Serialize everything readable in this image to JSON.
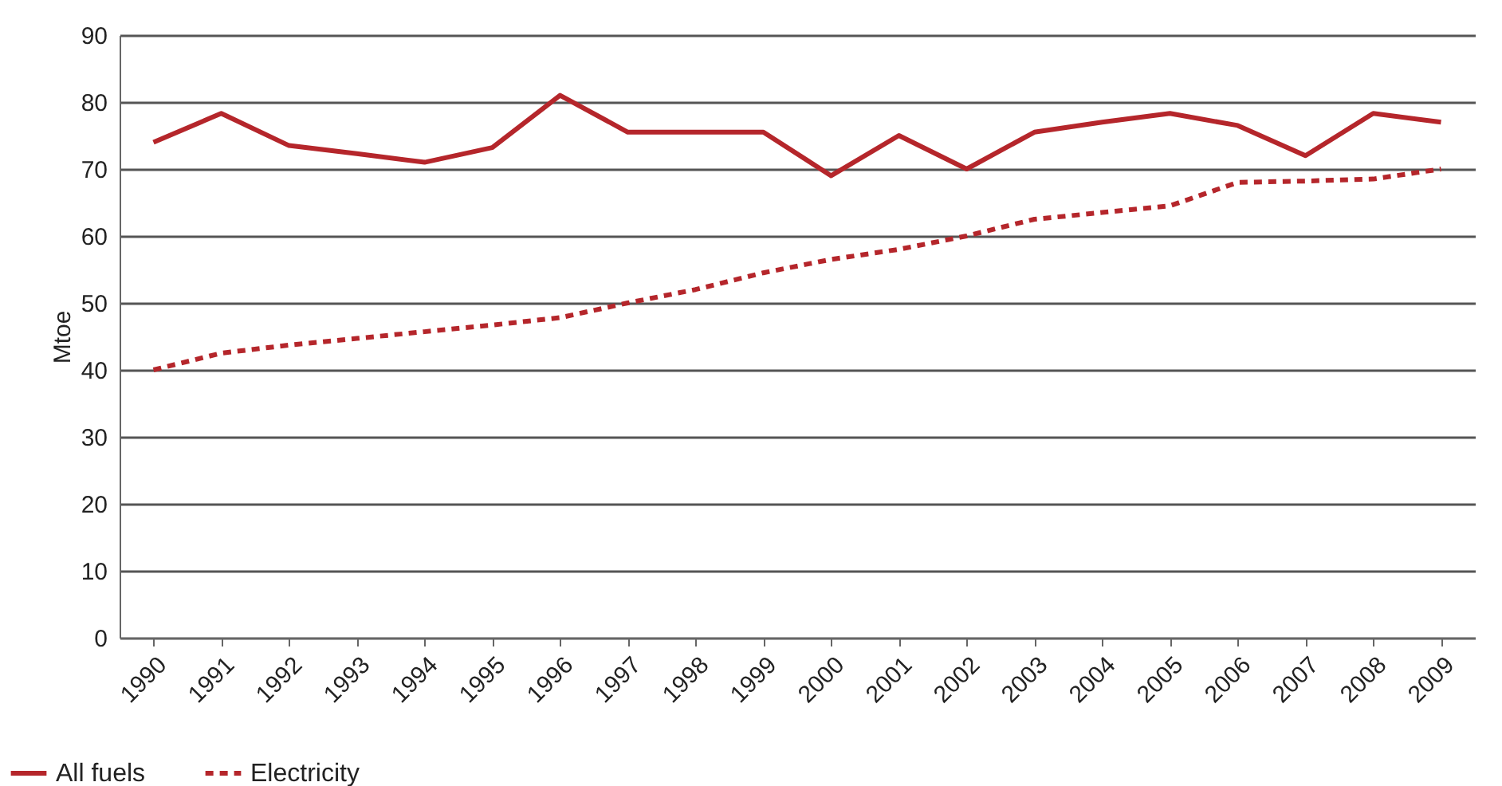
{
  "chart_data": {
    "type": "line",
    "ylabel": "Mtoe",
    "categories": [
      "1990",
      "1991",
      "1992",
      "1993",
      "1994",
      "1995",
      "1996",
      "1997",
      "1998",
      "1999",
      "2000",
      "2001",
      "2002",
      "2003",
      "2004",
      "2005",
      "2006",
      "2007",
      "2008",
      "2009"
    ],
    "series": [
      {
        "name": "All fuels",
        "color": "#b5262b",
        "line_style": "solid",
        "values": [
          74,
          78.3,
          73.5,
          72.3,
          71,
          73.2,
          81,
          75.5,
          75.5,
          75.5,
          69,
          75,
          70,
          75.5,
          77,
          78.3,
          76.5,
          72,
          78.3,
          77
        ]
      },
      {
        "name": "Electricity",
        "color": "#b5262b",
        "line_style": "dashed",
        "values": [
          40,
          42.5,
          43.7,
          44.7,
          45.7,
          46.7,
          47.8,
          50,
          52,
          54.5,
          56.5,
          58,
          60,
          62.5,
          63.5,
          64.5,
          68,
          68.2,
          68.5,
          70
        ]
      }
    ],
    "ylim": [
      0,
      90
    ],
    "yticks": [
      0,
      10,
      20,
      30,
      40,
      50,
      60,
      70,
      80,
      90
    ],
    "grid": "y",
    "legend": "bottom left",
    "marker": "none"
  }
}
